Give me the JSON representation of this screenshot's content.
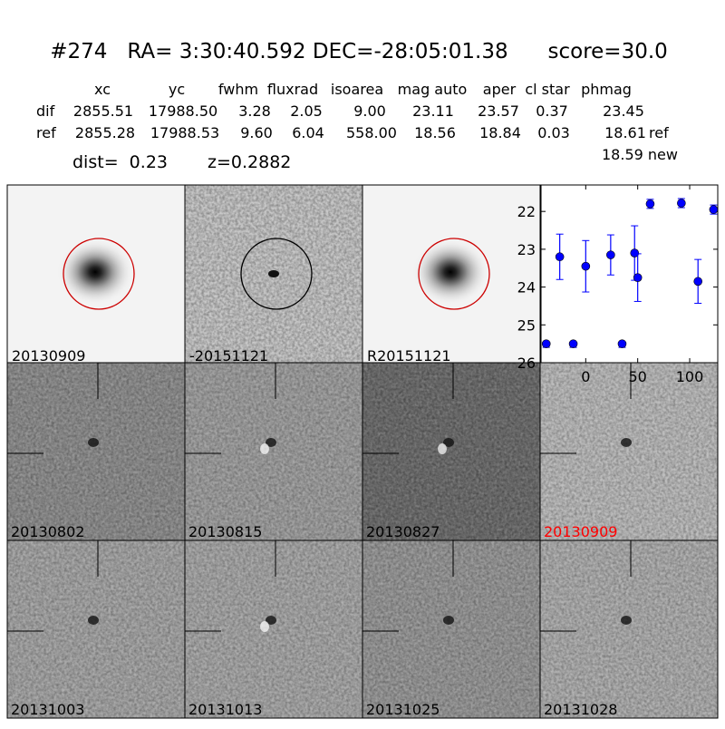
{
  "header": {
    "title": "#274   RA= 3:30:40.592 DEC=-28:05:01.38      score=30.0",
    "columns": [
      "xc",
      "yc",
      "fwhm",
      "fluxrad",
      "isoarea",
      "mag auto",
      "aper",
      "cl star",
      "phmag"
    ],
    "rows": [
      {
        "label": "dif",
        "values": [
          "2855.51",
          "17988.50",
          "3.28",
          "2.05",
          "9.00",
          "23.11",
          "23.57",
          "0.37",
          "23.45"
        ],
        "suffix": ""
      },
      {
        "label": "ref",
        "values": [
          "2855.28",
          "17988.53",
          "9.60",
          "6.04",
          "558.00",
          "18.56",
          "18.84",
          "0.03",
          "18.61"
        ],
        "suffix": "ref"
      }
    ],
    "new_phmag": "18.59 new",
    "dist": "dist=  0.23",
    "z": "z=0.2882"
  },
  "stamps": {
    "top": [
      {
        "label": "20130909",
        "circle_color": "#cc0000"
      },
      {
        "label": "-20151121",
        "circle_color": "#000000"
      },
      {
        "label": "R20151121",
        "circle_color": "#cc0000"
      }
    ],
    "grid": [
      {
        "label": "20130802",
        "label_color": "#000000"
      },
      {
        "label": "20130815",
        "label_color": "#000000"
      },
      {
        "label": "20130827",
        "label_color": "#000000"
      },
      {
        "label": "20130909",
        "label_color": "#ff0000"
      },
      {
        "label": "20131003",
        "label_color": "#000000"
      },
      {
        "label": "20131013",
        "label_color": "#000000"
      },
      {
        "label": "20131025",
        "label_color": "#000000"
      },
      {
        "label": "20131028",
        "label_color": "#000000"
      }
    ]
  },
  "chart_data": {
    "type": "scatter",
    "title": "",
    "xlabel": "",
    "ylabel": "",
    "xlim": [
      -43,
      127
    ],
    "ylim": [
      26,
      21.3
    ],
    "y_inverted": true,
    "xticks": [
      0,
      50,
      100
    ],
    "yticks": [
      22,
      23,
      24,
      25,
      26
    ],
    "grid": false,
    "color": "#0000ff",
    "points": [
      {
        "x": -38,
        "y": 25.5,
        "err": 0
      },
      {
        "x": -25,
        "y": 23.2,
        "err": 0.6
      },
      {
        "x": -12,
        "y": 25.5,
        "err": 0
      },
      {
        "x": 0,
        "y": 23.45,
        "err": 0.68
      },
      {
        "x": 24,
        "y": 23.15,
        "err": 0.53
      },
      {
        "x": 35,
        "y": 25.5,
        "err": 0
      },
      {
        "x": 47,
        "y": 23.1,
        "err": 0.72
      },
      {
        "x": 50,
        "y": 23.75,
        "err": 0.63
      },
      {
        "x": 62,
        "y": 21.8,
        "err": 0.12
      },
      {
        "x": 92,
        "y": 21.78,
        "err": 0.12
      },
      {
        "x": 108,
        "y": 23.85,
        "err": 0.58
      },
      {
        "x": 123,
        "y": 21.95,
        "err": 0.12
      }
    ]
  }
}
